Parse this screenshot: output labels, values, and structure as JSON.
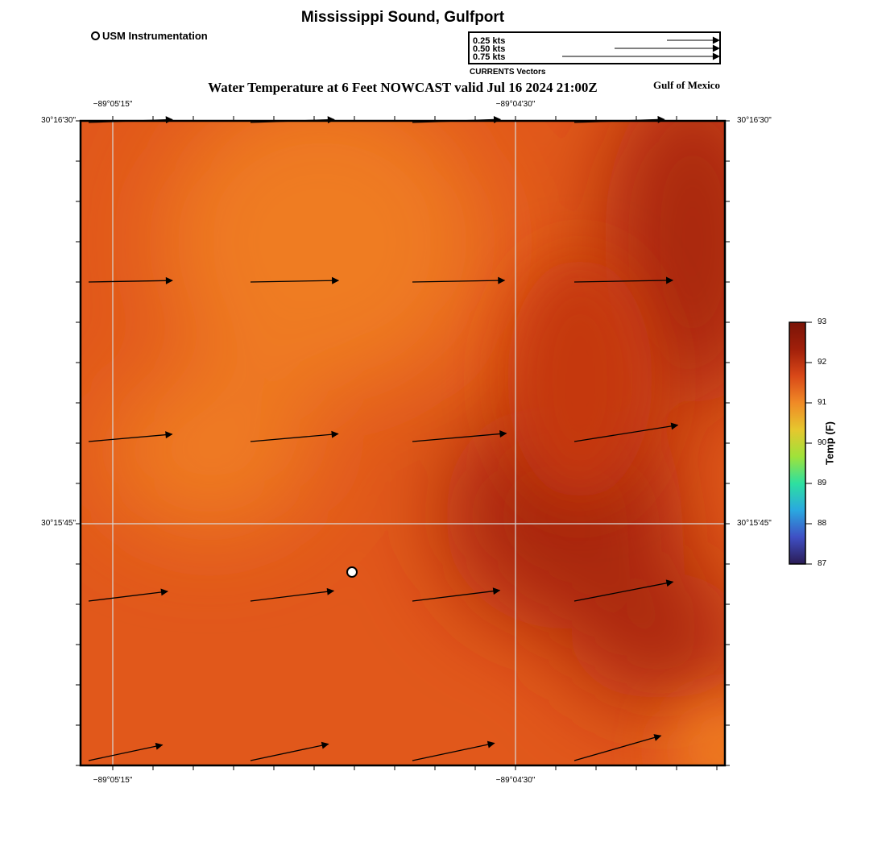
{
  "map": {
    "title_top": "Mississippi Sound, Gulfport",
    "title_bottom": "Mississippi Sound, Gulfport",
    "subtitle": "Water Temperature at 6 Feet NOWCAST valid Jul 16 2024 21:00Z",
    "region": "Gulf of Mexico",
    "x_tick_labels": [
      "−89°05'15\"",
      "−89°04'30\""
    ],
    "y_tick_labels": [
      "30°16'30\"",
      "30°15'45\""
    ],
    "frame_color": "#000000",
    "gridline_color": "#d8d8d8"
  },
  "station_legend": {
    "label": "USM Instrumentation",
    "marker": "open-circle-icon"
  },
  "vector_legend": {
    "caption": "CURRENTS Vectors",
    "entries": [
      {
        "label": "0.25 kts",
        "speed": 0.25
      },
      {
        "label": "0.50 kts",
        "speed": 0.5
      },
      {
        "label": "0.75 kts",
        "speed": 0.75
      }
    ]
  },
  "colorbar": {
    "title": "Temp (F)",
    "min": 87,
    "max": 93,
    "labels": [
      "93",
      "92",
      "91",
      "90",
      "89",
      "88",
      "87"
    ],
    "stops": [
      "#2b1c55",
      "#3f4fc4",
      "#2aa8e0",
      "#2de0a0",
      "#9fe23a",
      "#e6c72e",
      "#f08a26",
      "#d94818",
      "#a01f0a",
      "#7a1408"
    ]
  },
  "field_colors": {
    "base": "#e1581b",
    "warm_light": "#ef7b22",
    "hot_dark": "#a9250a",
    "hot_mid": "#c5380f"
  },
  "current_vectors": [
    {
      "row": 0,
      "col": 0,
      "speed": 0.4,
      "bend": 0
    },
    {
      "row": 0,
      "col": 1,
      "speed": 0.4,
      "bend": 0
    },
    {
      "row": 0,
      "col": 2,
      "speed": 0.42,
      "bend": 0
    },
    {
      "row": 0,
      "col": 3,
      "speed": 0.43,
      "bend": 0
    },
    {
      "row": 1,
      "col": 0,
      "speed": 0.4,
      "bend": 0
    },
    {
      "row": 1,
      "col": 1,
      "speed": 0.42,
      "bend": 0
    },
    {
      "row": 1,
      "col": 2,
      "speed": 0.44,
      "bend": 0
    },
    {
      "row": 1,
      "col": 3,
      "speed": 0.47,
      "bend": 0
    },
    {
      "row": 2,
      "col": 0,
      "speed": 0.4,
      "bend": 0
    },
    {
      "row": 2,
      "col": 1,
      "speed": 0.42,
      "bend": 0
    },
    {
      "row": 2,
      "col": 2,
      "speed": 0.45,
      "bend": 0
    },
    {
      "row": 2,
      "col": 3,
      "speed": 0.5,
      "bend": 0
    },
    {
      "row": 3,
      "col": 0,
      "speed": 0.38,
      "bend": 0
    },
    {
      "row": 3,
      "col": 1,
      "speed": 0.4,
      "bend": 0
    },
    {
      "row": 3,
      "col": 2,
      "speed": 0.42,
      "bend": 0
    },
    {
      "row": 3,
      "col": 3,
      "speed": 0.48,
      "bend": 0
    },
    {
      "row": 4,
      "col": 0,
      "speed": 0.36,
      "bend": 0
    },
    {
      "row": 4,
      "col": 1,
      "speed": 0.38,
      "bend": 0
    },
    {
      "row": 4,
      "col": 2,
      "speed": 0.4,
      "bend": 0
    },
    {
      "row": 4,
      "col": 3,
      "speed": 0.43,
      "bend": 0
    }
  ],
  "station": {
    "name": "USM Instrumentation"
  }
}
